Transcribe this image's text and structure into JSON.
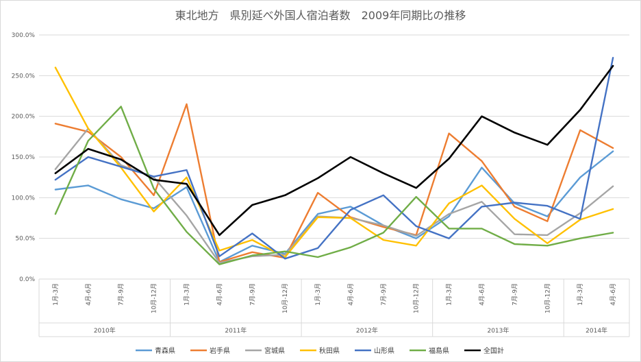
{
  "chart_data": {
    "type": "line",
    "title": "東北地方　県別延べ外国人宿泊者数　2009年同期比の推移",
    "xlabel": "",
    "ylabel": "",
    "ylim": [
      0,
      300
    ],
    "yticks": [
      "0.0%",
      "50.0%",
      "100.0%",
      "150.0%",
      "200.0%",
      "250.0%",
      "300.0%"
    ],
    "grid": true,
    "legend_position": "bottom",
    "categories": [
      "1月-3月",
      "4月-6月",
      "7月-9月",
      "10月-12月",
      "1月-3月",
      "4月-6月",
      "7月-9月",
      "10月-12月",
      "1月-3月",
      "4月-6月",
      "7月-9月",
      "10月-12月",
      "1月-3月",
      "4月-6月",
      "7月-9月",
      "10月-12月",
      "1月-3月",
      "4月-6月"
    ],
    "year_groups": [
      {
        "label": "2010年",
        "count": 4
      },
      {
        "label": "2011年",
        "count": 4
      },
      {
        "label": "2012年",
        "count": 4
      },
      {
        "label": "2013年",
        "count": 4
      },
      {
        "label": "2014年",
        "count": 2
      }
    ],
    "series": [
      {
        "name": "青森県",
        "color": "#5B9BD5",
        "values": [
          110,
          115,
          98,
          87,
          113,
          21,
          41,
          31,
          80,
          89,
          66,
          50,
          77,
          137,
          93,
          77,
          125,
          157
        ]
      },
      {
        "name": "岩手県",
        "color": "#ED7D31",
        "values": [
          191,
          181,
          150,
          103,
          215,
          21,
          33,
          26,
          106,
          76,
          64,
          54,
          179,
          145,
          89,
          71,
          183,
          161
        ]
      },
      {
        "name": "宮城県",
        "color": "#A5A5A5",
        "values": [
          135,
          185,
          140,
          125,
          78,
          20,
          28,
          30,
          77,
          75,
          66,
          53,
          80,
          95,
          55,
          54,
          81,
          114
        ]
      },
      {
        "name": "秋田県",
        "color": "#FFC000",
        "values": [
          260,
          185,
          137,
          83,
          125,
          35,
          48,
          27,
          76,
          75,
          48,
          41,
          93,
          115,
          74,
          44,
          73,
          86
        ]
      },
      {
        "name": "山形県",
        "color": "#4472C4",
        "values": [
          122,
          150,
          138,
          126,
          134,
          28,
          56,
          25,
          38,
          85,
          103,
          65,
          50,
          89,
          94,
          90,
          74,
          272
        ]
      },
      {
        "name": "福島県",
        "color": "#70AD47",
        "values": [
          80,
          170,
          212,
          111,
          58,
          18,
          29,
          34,
          27,
          39,
          57,
          101,
          62,
          62,
          43,
          41,
          50,
          57
        ]
      },
      {
        "name": "全国計",
        "color": "#000000",
        "values": [
          130,
          160,
          147,
          122,
          117,
          54,
          91,
          103,
          124,
          150,
          130,
          112,
          148,
          200,
          180,
          165,
          208,
          262
        ]
      }
    ]
  }
}
